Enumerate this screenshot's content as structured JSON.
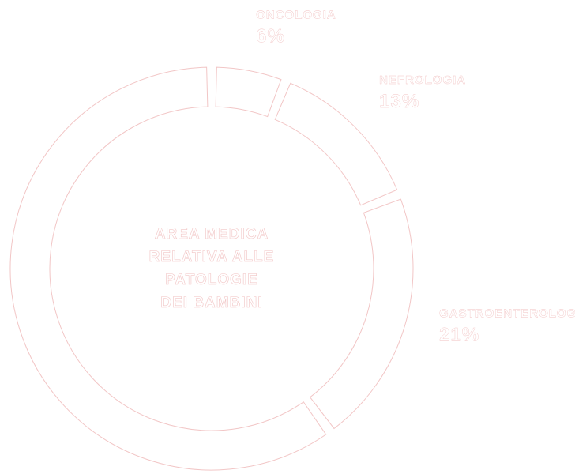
{
  "chart_data": {
    "type": "donut",
    "center_text": [
      "AREA MEDICA",
      "RELATIVA ALLE",
      "PATOLOGIE",
      "DEI BAMBINI"
    ],
    "categories": [
      "ONCOLOGIA",
      "NEFROLOGIA",
      "GASTROENTEROLOGIA",
      null
    ],
    "values": [
      6,
      13,
      21,
      60
    ],
    "value_labels": [
      "6%",
      "13%",
      "21%",
      null
    ],
    "color": "#ffffff",
    "edge_color": "#f2c6c6"
  }
}
